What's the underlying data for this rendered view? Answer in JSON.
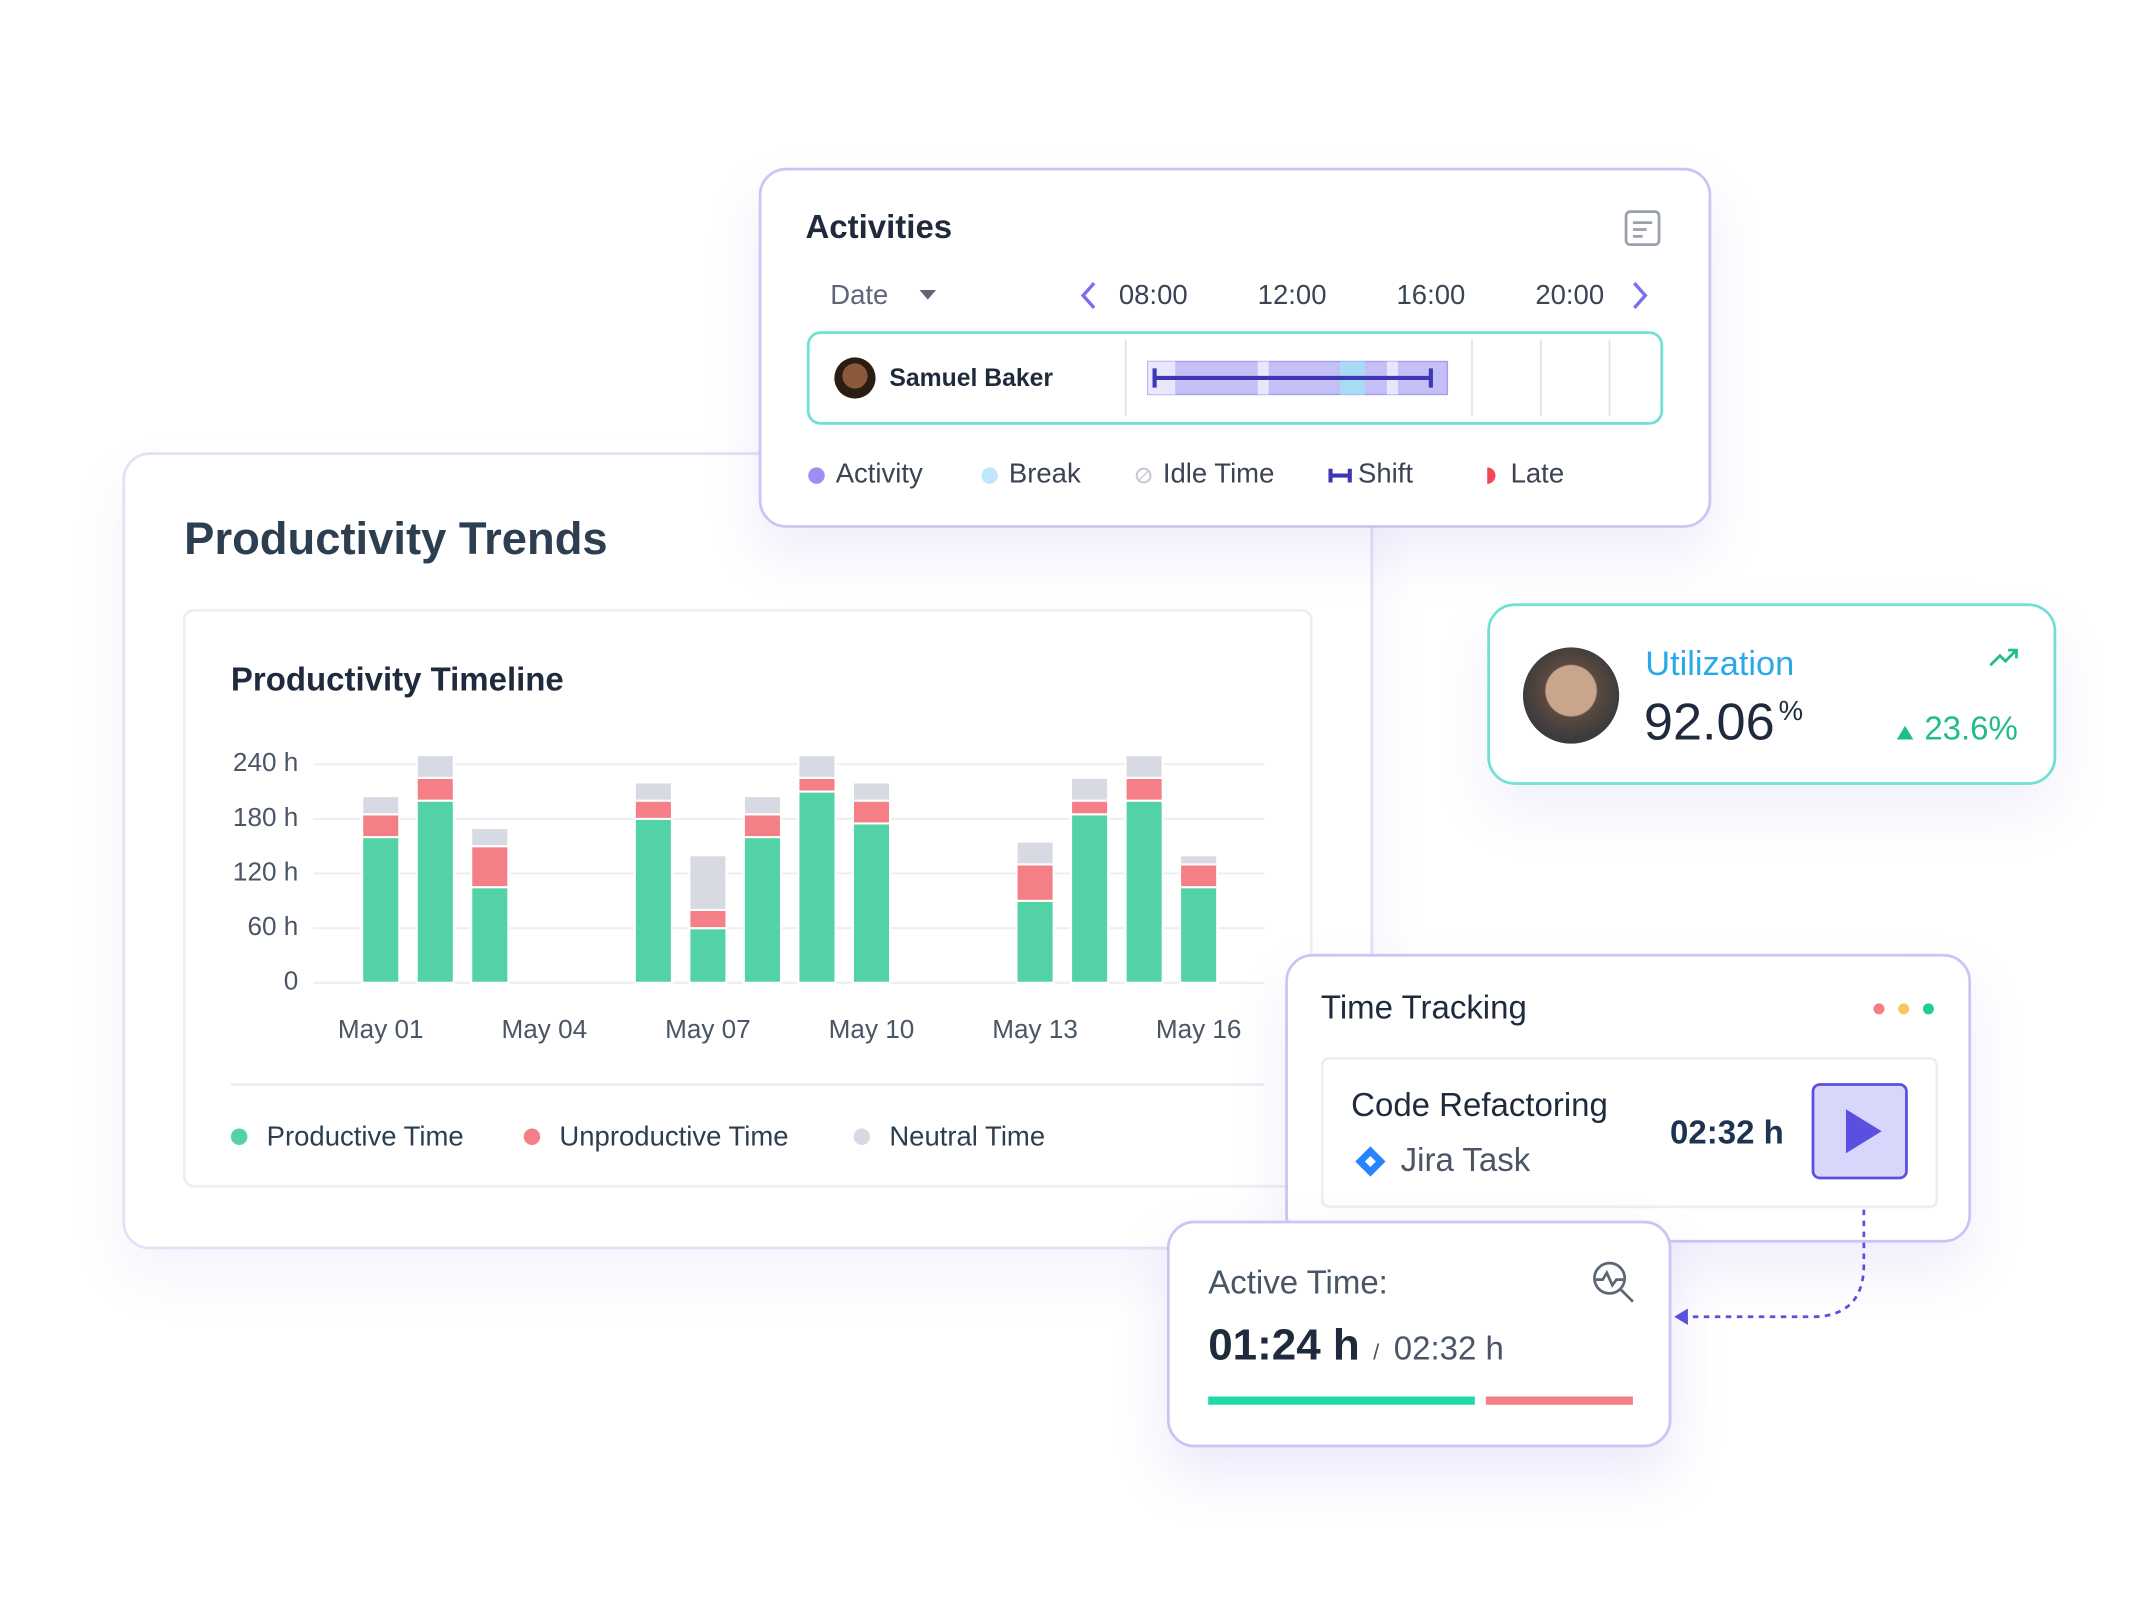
{
  "activities": {
    "title": "Activities",
    "date_label": "Date",
    "times": [
      "08:00",
      "12:00",
      "16:00",
      "20:00"
    ],
    "user": "Samuel Baker",
    "legend": [
      "Activity",
      "Break",
      "Idle Time",
      "Shift",
      "Late"
    ]
  },
  "productivity": {
    "title": "Productivity Trends"
  },
  "chart_data": {
    "type": "bar",
    "stacked": true,
    "title": "Productivity Timeline",
    "categories": [
      "May 01",
      null,
      null,
      "May 04",
      null,
      null,
      "May 07",
      null,
      null,
      "May 10",
      null,
      null,
      "May 13",
      null,
      null,
      "May 16"
    ],
    "series": [
      {
        "name": "Productive Time",
        "color": "#53d3a5",
        "values": [
          160,
          200,
          105,
          null,
          null,
          180,
          60,
          160,
          210,
          175,
          null,
          null,
          90,
          185,
          200,
          105
        ]
      },
      {
        "name": "Unproductive Time",
        "color": "#f47f87",
        "values": [
          25,
          25,
          45,
          null,
          null,
          20,
          20,
          25,
          15,
          25,
          null,
          null,
          40,
          15,
          25,
          25
        ]
      },
      {
        "name": "Neutral Time",
        "color": "#d7dae3",
        "values": [
          20,
          25,
          20,
          null,
          null,
          20,
          60,
          20,
          25,
          20,
          null,
          null,
          25,
          25,
          25,
          10
        ]
      }
    ],
    "ylim": [
      0,
      240
    ],
    "yticks": [
      0,
      {
        "value": 60,
        "label": "60 h"
      },
      {
        "value": 120,
        "label": "120 h"
      },
      {
        "value": 180,
        "label": "180 h"
      },
      {
        "value": 240,
        "label": "240 h"
      }
    ],
    "grid": true
  },
  "utilization": {
    "title": "Utilization",
    "value": "92.06",
    "unit": "%",
    "change": "23.6%"
  },
  "time_tracking": {
    "title": "Time Tracking",
    "task": "Code Refactoring",
    "source": "Jira Task",
    "time": "02:32 h"
  },
  "active_time": {
    "label": "Active Time:",
    "value": "01:24 h",
    "separator": "/",
    "total": "02:32 h"
  }
}
